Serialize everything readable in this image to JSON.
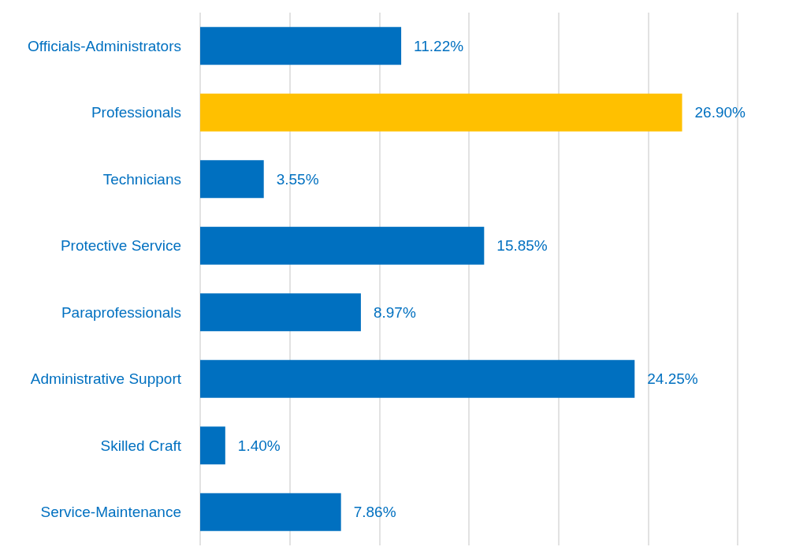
{
  "chart_data": {
    "type": "bar",
    "orientation": "horizontal",
    "categories": [
      "Officials-Administrators",
      "Professionals",
      "Technicians",
      "Protective Service",
      "Paraprofessionals",
      "Administrative Support",
      "Skilled Craft",
      "Service-Maintenance"
    ],
    "values": [
      11.22,
      26.9,
      3.55,
      15.85,
      8.97,
      24.25,
      1.4,
      7.86
    ],
    "value_labels": [
      "11.22%",
      "26.90%",
      "3.55%",
      "15.85%",
      "8.97%",
      "24.25%",
      "1.40%",
      "7.86%"
    ],
    "colors": [
      "#0070c0",
      "#ffc000",
      "#0070c0",
      "#0070c0",
      "#0070c0",
      "#0070c0",
      "#0070c0",
      "#0070c0"
    ],
    "xlim": [
      0,
      30
    ],
    "xticks": [
      {
        "value": 0,
        "label": null
      },
      {
        "value": 5,
        "label": null
      },
      {
        "value": 10,
        "label": null
      },
      {
        "value": 15,
        "label": null
      },
      {
        "value": 20,
        "label": null
      },
      {
        "value": 25,
        "label": null
      },
      {
        "value": 30,
        "label": null
      }
    ],
    "grid": "x",
    "tick_labels": "y"
  }
}
